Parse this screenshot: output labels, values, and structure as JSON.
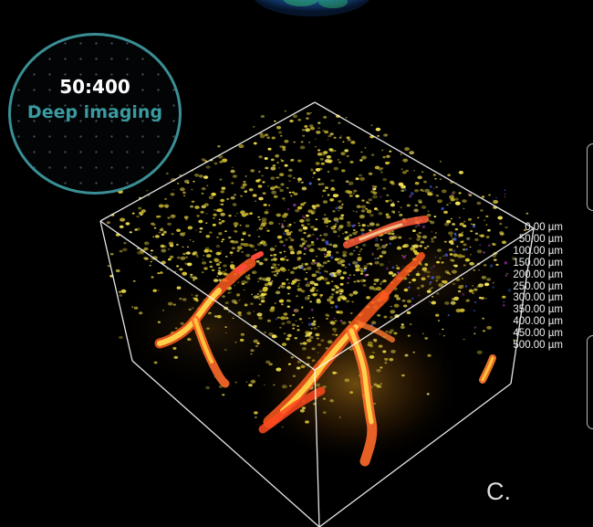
{
  "badge": {
    "ratio": "50:400",
    "label": "Deep imaging",
    "ring_color": "#3a8f95",
    "label_color": "#3b9aa0"
  },
  "depth_scale": {
    "unit": "µm",
    "ticks": [
      "0.00",
      "50.00",
      "100.00",
      "150.00",
      "200.00",
      "250.00",
      "300.00",
      "350.00",
      "400.00",
      "450.00",
      "500.00"
    ]
  },
  "panel_label": "C.",
  "colors": {
    "background": "#000000",
    "particles": "#e7d23a",
    "vessels": "#ff6a2a",
    "vessel_core": "#ffd04a",
    "box_edges": "#ffffff"
  }
}
